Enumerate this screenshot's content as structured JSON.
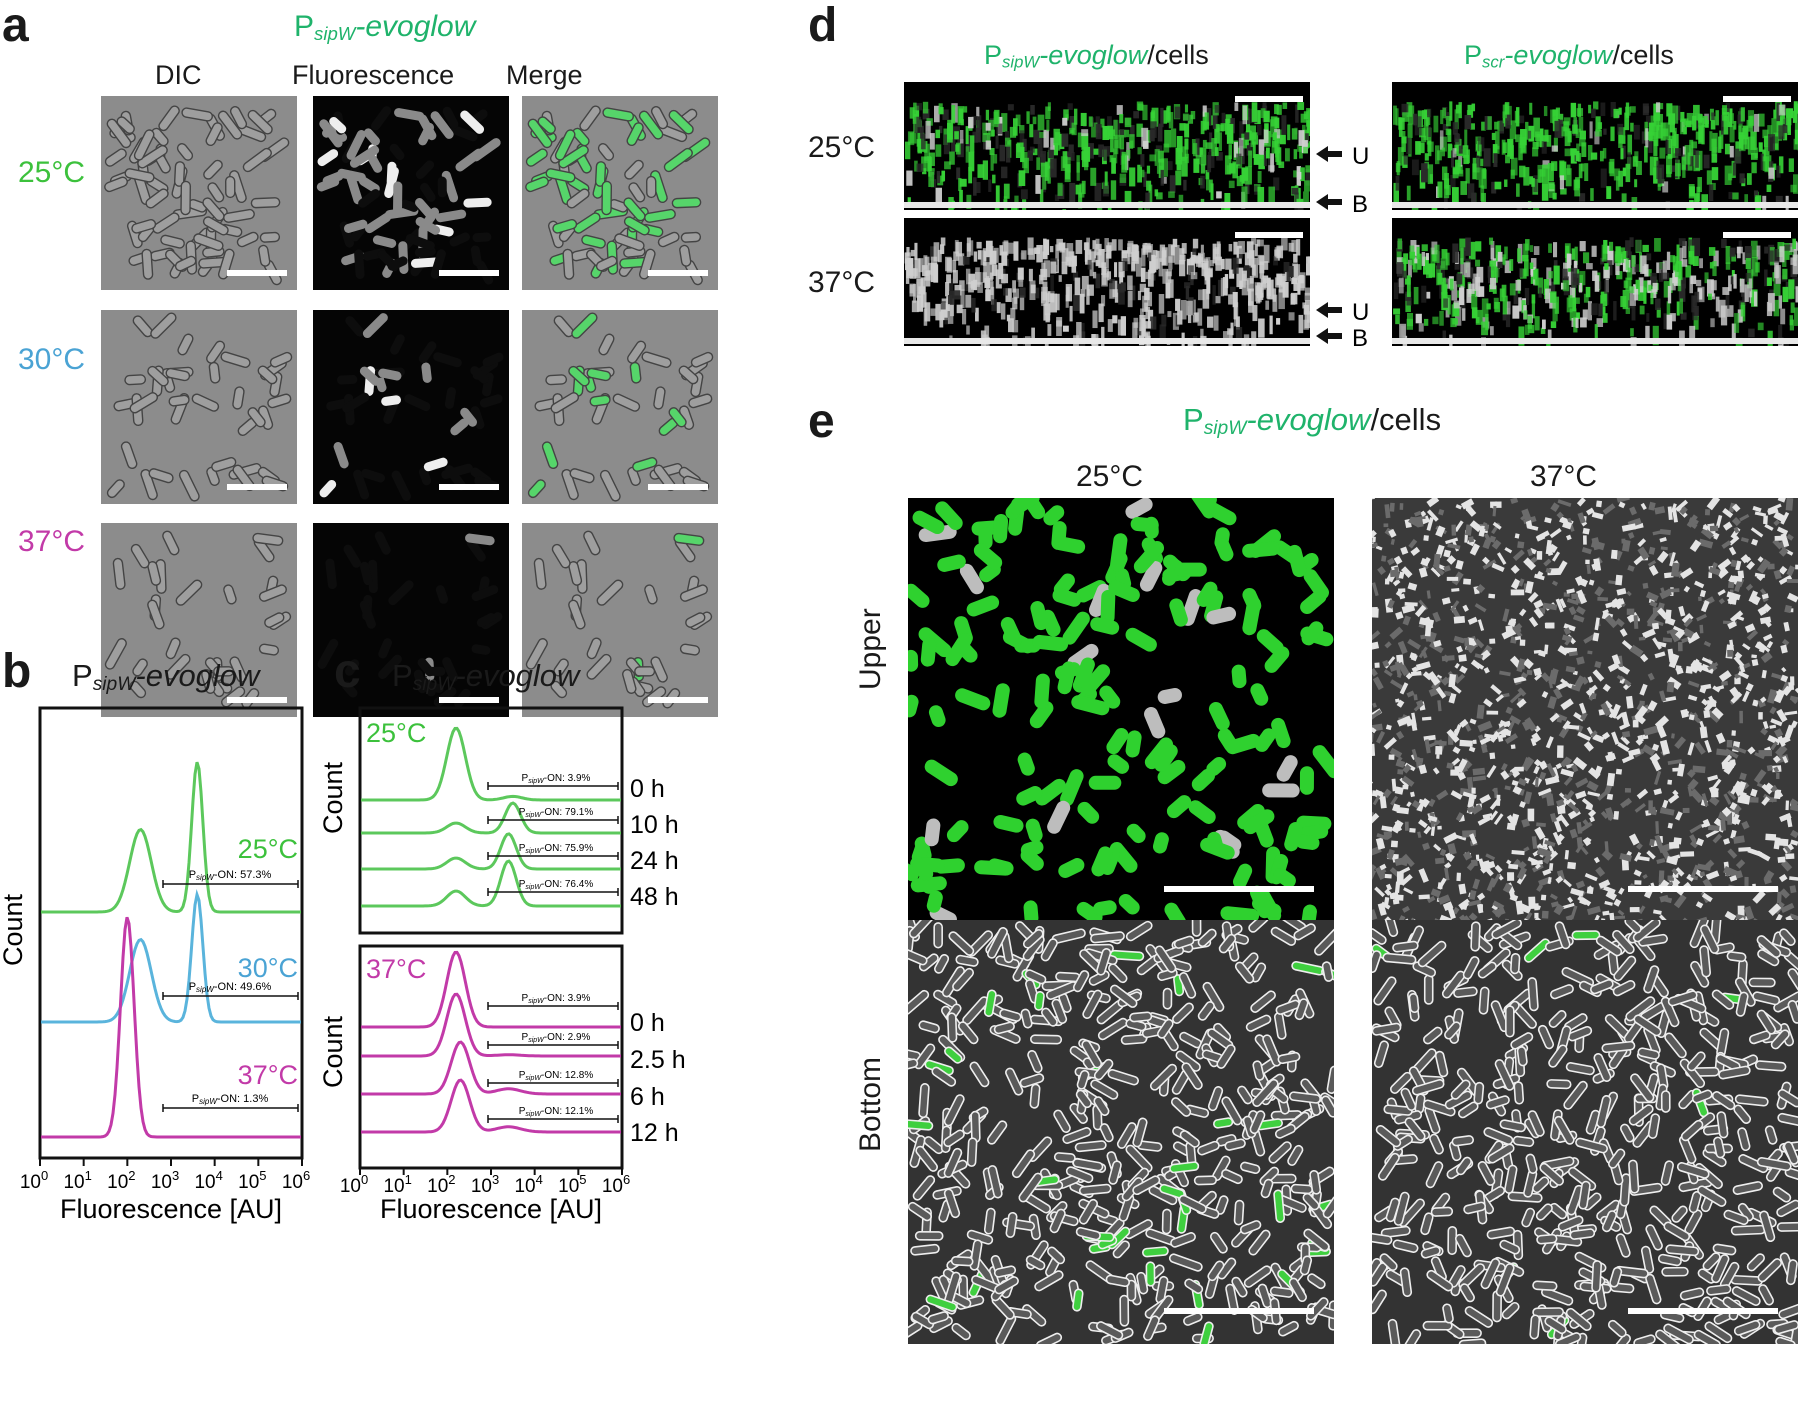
{
  "panel_letters": {
    "a": "a",
    "b": "b",
    "c": "c",
    "d": "d",
    "e": "e"
  },
  "panel_a": {
    "title_prefix": "P",
    "title_sub": "sipW",
    "title_suffix": "-evoglow",
    "col_headers": [
      "DIC",
      "Fluorescence",
      "Merge"
    ],
    "row_labels": [
      "25°C",
      "30°C",
      "37°C"
    ],
    "row_colors": [
      "#3cc13c",
      "#4aa3d4",
      "#c23aa8"
    ]
  },
  "panel_b": {
    "title_prefix": "P",
    "title_sub": "sipW",
    "title_suffix": "-evoglow",
    "ylabel": "Count",
    "xlabel": "Fluorescence [AU]",
    "xticks": [
      "10",
      "10",
      "10",
      "10",
      "10",
      "10",
      "10"
    ],
    "xtick_exps": [
      "0",
      "1",
      "2",
      "3",
      "4",
      "5",
      "6"
    ],
    "curve_labels": [
      "25°C",
      "30°C",
      "37°C"
    ],
    "gates": [
      {
        "pre": "P",
        "sub": "sipW",
        "post": "-ON: 57.3%"
      },
      {
        "pre": "P",
        "sub": "sipW",
        "post": "-ON: 49.6%"
      },
      {
        "pre": "P",
        "sub": "sipW",
        "post": "-ON: 1.3%"
      }
    ]
  },
  "panel_c": {
    "title_prefix": "P",
    "title_sub": "sipW",
    "title_suffix": "-evoglow",
    "ylabel": "Count",
    "xlabel": "Fluorescence [AU]",
    "top_label": "25°C",
    "bottom_label": "37°C",
    "top_times": [
      "0 h",
      "10 h",
      "24 h",
      "48 h"
    ],
    "bottom_times": [
      "0 h",
      "2.5 h",
      "6 h",
      "12 h"
    ],
    "top_gates": [
      {
        "pre": "P",
        "sub": "sipW",
        "post": "-ON: 3.9%"
      },
      {
        "pre": "P",
        "sub": "sipW",
        "post": "-ON: 79.1%"
      },
      {
        "pre": "P",
        "sub": "sipW",
        "post": "-ON: 75.9%"
      },
      {
        "pre": "P",
        "sub": "sipW",
        "post": "-ON: 76.4%"
      }
    ],
    "bottom_gates": [
      {
        "pre": "P",
        "sub": "sipW",
        "post": "-ON: 3.9%"
      },
      {
        "pre": "P",
        "sub": "sipW",
        "post": "-ON: 2.9%"
      },
      {
        "pre": "P",
        "sub": "sipW",
        "post": "-ON: 12.8%"
      },
      {
        "pre": "P",
        "sub": "sipW",
        "post": "-ON: 12.1%"
      }
    ],
    "xticks": [
      "10",
      "10",
      "10",
      "10",
      "10",
      "10",
      "10"
    ],
    "xtick_exps": [
      "0",
      "1",
      "2",
      "3",
      "4",
      "5",
      "6"
    ]
  },
  "panel_d": {
    "left_title_prefix": "P",
    "left_title_sub": "sipW",
    "left_title_suffix": "-evoglow",
    "left_title_tail": "/cells",
    "right_title_prefix": "P",
    "right_title_sub": "scr",
    "right_title_suffix": "-evoglow",
    "right_title_tail": "/cells",
    "row_labels": [
      "25°C",
      "37°C"
    ],
    "arrow_labels": [
      "U",
      "B",
      "U",
      "B"
    ]
  },
  "panel_e": {
    "title_prefix": "P",
    "title_sub": "sipW",
    "title_suffix": "-evoglow",
    "title_tail": "/cells",
    "col_headers": [
      "25°C",
      "37°C"
    ],
    "row_labels": [
      "Upper",
      "Bottom"
    ]
  },
  "colors": {
    "green": "#1fb36b",
    "fluor_green": "#3cc13c",
    "blue": "#5ab4dc",
    "magenta": "#c23aa8",
    "dic_gray": "#8c8c8c"
  },
  "chart_data": [
    {
      "type": "area",
      "title": "PsipW-evoglow",
      "xlabel": "Fluorescence [AU]",
      "ylabel": "Count",
      "x_scale": "log",
      "xlim": [
        1,
        1000000
      ],
      "series": [
        {
          "name": "25°C",
          "peaks": [
            {
              "x": 200,
              "rel": 0.55
            },
            {
              "x": 4000,
              "rel": 1.0
            }
          ],
          "gate": "PsipW-ON: 57.3%"
        },
        {
          "name": "30°C",
          "peaks": [
            {
              "x": 200,
              "rel": 0.55
            },
            {
              "x": 4000,
              "rel": 0.85
            }
          ],
          "gate": "PsipW-ON: 49.6%"
        },
        {
          "name": "37°C",
          "peaks": [
            {
              "x": 100,
              "rel": 1.0
            }
          ],
          "gate": "PsipW-ON: 1.3%"
        }
      ]
    },
    {
      "type": "area",
      "title": "PsipW-evoglow",
      "xlabel": "Fluorescence [AU]",
      "ylabel": "Count",
      "x_scale": "log",
      "xlim": [
        1,
        1000000
      ],
      "series": [
        {
          "name": "25°C 0 h",
          "gate": "PsipW-ON: 3.9%"
        },
        {
          "name": "25°C 10 h",
          "gate": "PsipW-ON: 79.1%"
        },
        {
          "name": "25°C 24 h",
          "gate": "PsipW-ON: 75.9%"
        },
        {
          "name": "25°C 48 h",
          "gate": "PsipW-ON: 76.4%"
        },
        {
          "name": "37°C 0 h",
          "gate": "PsipW-ON: 3.9%"
        },
        {
          "name": "37°C 2.5 h",
          "gate": "PsipW-ON: 2.9%"
        },
        {
          "name": "37°C 6 h",
          "gate": "PsipW-ON: 12.8%"
        },
        {
          "name": "37°C 12 h",
          "gate": "PsipW-ON: 12.1%"
        }
      ]
    }
  ]
}
